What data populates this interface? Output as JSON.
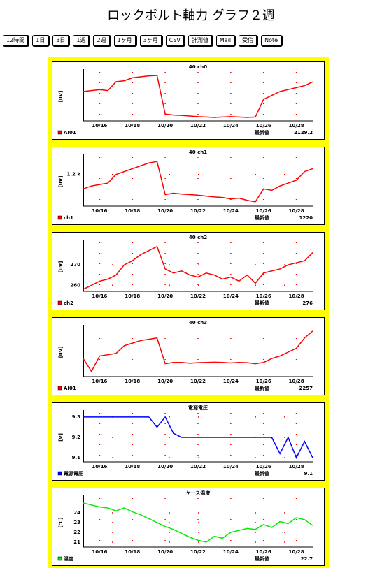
{
  "title": "ロックボルト軸力 グラフ２週",
  "buttons": [
    "12時間",
    "1日",
    "3日",
    "1週",
    "2週",
    "1ヶ月",
    "3ヶ月",
    "CSV",
    "計測値",
    "Mail",
    "受信",
    "Note"
  ],
  "chart_data": [
    {
      "type": "line",
      "title": "40 ch0",
      "ylabel": "[uV]",
      "legend": "AI01",
      "latest_label": "最新値",
      "latest_value": 2129.2,
      "categories": [
        null,
        null,
        "10/16",
        null,
        null,
        null,
        "10/18",
        null,
        null,
        null,
        "10/20",
        null,
        null,
        null,
        "10/22",
        null,
        null,
        null,
        "10/24",
        null,
        null,
        null,
        "10/26",
        null,
        null,
        null,
        "10/28",
        null,
        null
      ],
      "ylim": [
        1930,
        2180
      ],
      "yticks": [],
      "series": [
        {
          "name": "AI01",
          "color": "#ff0000",
          "values": [
            2080,
            2085,
            2090,
            2085,
            2130,
            2135,
            2150,
            2155,
            2160,
            2162,
            1965,
            1960,
            1958,
            1955,
            1952,
            1950,
            1948,
            1950,
            1952,
            1950,
            1948,
            1950,
            2040,
            2060,
            2080,
            2090,
            2100,
            2110,
            2129.2
          ]
        }
      ]
    },
    {
      "type": "line",
      "title": "40 ch1",
      "ylabel": "[uV]",
      "legend": "ch1",
      "latest_label": "最新値",
      "latest_value": 1220.0,
      "categories": [
        null,
        null,
        "10/16",
        null,
        null,
        null,
        "10/18",
        null,
        null,
        null,
        "10/20",
        null,
        null,
        null,
        "10/22",
        null,
        null,
        null,
        "10/24",
        null,
        null,
        null,
        "10/26",
        null,
        null,
        null,
        "10/28",
        null,
        null
      ],
      "ylim": [
        1090,
        1260
      ],
      "yticks": [
        {
          "value": 1200,
          "label": "1.2 k"
        }
      ],
      "series": [
        {
          "name": "ch1",
          "color": "#ff0000",
          "values": [
            1150,
            1160,
            1165,
            1170,
            1200,
            1210,
            1220,
            1230,
            1240,
            1245,
            1130,
            1135,
            1132,
            1130,
            1128,
            1125,
            1122,
            1120,
            1115,
            1118,
            1110,
            1105,
            1150,
            1145,
            1160,
            1170,
            1180,
            1210,
            1220
          ]
        }
      ]
    },
    {
      "type": "line",
      "title": "40 ch2",
      "ylabel": "[uV]",
      "legend": "ch2",
      "latest_label": "最新値",
      "latest_value": 276.0,
      "categories": [
        null,
        null,
        "10/16",
        null,
        null,
        null,
        "10/18",
        null,
        null,
        null,
        "10/20",
        null,
        null,
        null,
        "10/22",
        null,
        null,
        null,
        "10/24",
        null,
        null,
        null,
        "10/26",
        null,
        null,
        null,
        "10/28",
        null,
        null
      ],
      "ylim": [
        257,
        281
      ],
      "yticks": [
        270,
        260
      ],
      "series": [
        {
          "name": "ch2",
          "color": "#ff0000",
          "values": [
            258,
            260,
            262,
            263,
            265,
            270,
            272,
            275,
            277,
            279,
            268,
            266,
            267,
            265,
            264,
            266,
            265,
            263,
            264,
            262,
            265,
            261,
            266,
            267,
            268,
            270,
            271,
            272,
            276
          ]
        }
      ]
    },
    {
      "type": "line",
      "title": "40 ch3",
      "ylabel": "[uV]",
      "legend": "AI01",
      "latest_label": "最新値",
      "latest_value": 2257.0,
      "categories": [
        null,
        null,
        "10/16",
        null,
        null,
        null,
        "10/18",
        null,
        null,
        null,
        "10/20",
        null,
        null,
        null,
        "10/22",
        null,
        null,
        null,
        "10/24",
        null,
        null,
        null,
        "10/26",
        null,
        null,
        null,
        "10/28",
        null,
        null
      ],
      "ylim": [
        2080,
        2270
      ],
      "yticks": [],
      "series": [
        {
          "name": "AI01",
          "color": "#ff0000",
          "values": [
            2150,
            2100,
            2160,
            2165,
            2170,
            2200,
            2210,
            2220,
            2225,
            2230,
            2130,
            2135,
            2135,
            2132,
            2134,
            2135,
            2136,
            2135,
            2133,
            2135,
            2134,
            2130,
            2135,
            2150,
            2160,
            2175,
            2190,
            2230,
            2257
          ]
        }
      ]
    },
    {
      "type": "line",
      "title": "電源電圧",
      "ylabel": "[V]",
      "legend": "電源電圧",
      "latest_label": "最新値",
      "latest_value": 9.1,
      "categories": [
        null,
        null,
        "10/16",
        null,
        null,
        null,
        "10/18",
        null,
        null,
        null,
        "10/20",
        null,
        null,
        null,
        "10/22",
        null,
        null,
        null,
        "10/24",
        null,
        null,
        null,
        "10/26",
        null,
        null,
        null,
        "10/28",
        null,
        null
      ],
      "ylim": [
        9.08,
        9.32
      ],
      "yticks": [
        9.3,
        9.2,
        9.1
      ],
      "series": [
        {
          "name": "電源電圧",
          "color": "#0000ff",
          "values": [
            9.3,
            9.3,
            9.3,
            9.3,
            9.3,
            9.3,
            9.3,
            9.3,
            9.3,
            9.25,
            9.3,
            9.22,
            9.2,
            9.2,
            9.2,
            9.2,
            9.2,
            9.2,
            9.2,
            9.2,
            9.2,
            9.2,
            9.2,
            9.2,
            9.12,
            9.2,
            9.1,
            9.18,
            9.1
          ]
        }
      ]
    },
    {
      "type": "line",
      "title": "ケース温度",
      "ylabel": "[℃]",
      "legend": "温度",
      "latest_label": "最新値",
      "latest_value": 22.7,
      "categories": [
        null,
        null,
        "10/16",
        null,
        null,
        null,
        "10/18",
        null,
        null,
        null,
        "10/20",
        null,
        null,
        null,
        "10/22",
        null,
        null,
        null,
        "10/24",
        null,
        null,
        null,
        "10/26",
        null,
        null,
        null,
        "10/28",
        null,
        null
      ],
      "ylim": [
        20.5,
        25.5
      ],
      "yticks": [
        24,
        23,
        22,
        21
      ],
      "series": [
        {
          "name": "温度",
          "color": "#00ee00",
          "values": [
            25,
            24.8,
            24.6,
            24.5,
            24.2,
            24.5,
            24.1,
            23.8,
            23.4,
            23.0,
            22.6,
            22.3,
            21.9,
            21.5,
            21.2,
            21.0,
            21.6,
            21.4,
            22.0,
            22.2,
            22.4,
            22.3,
            22.8,
            22.5,
            23.1,
            22.9,
            23.5,
            23.3,
            22.7
          ]
        }
      ]
    }
  ]
}
